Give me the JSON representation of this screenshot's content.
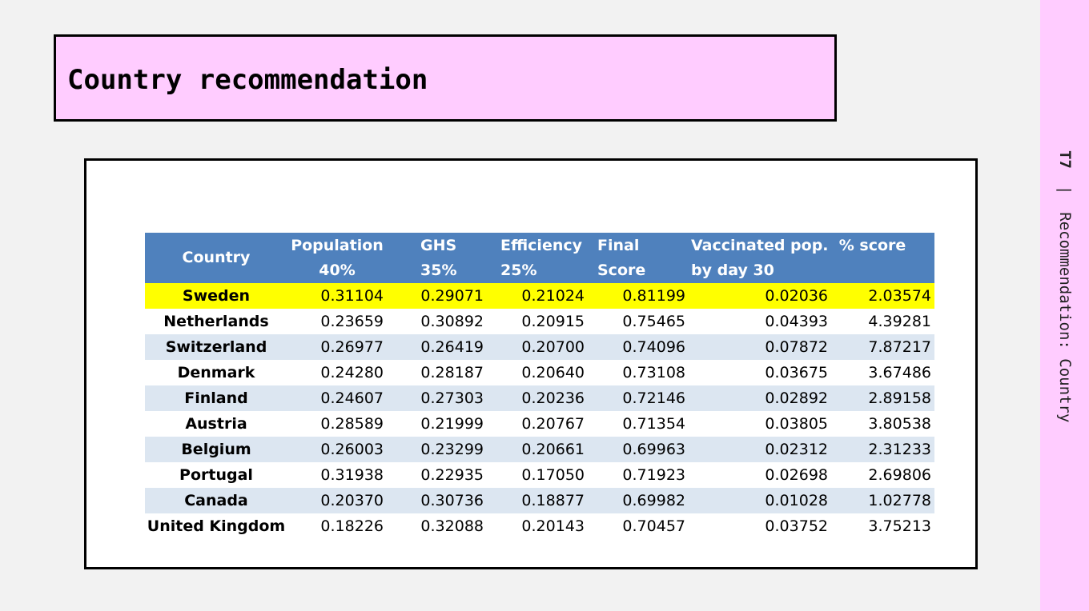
{
  "slide": {
    "title": "Country recommendation",
    "side_code": "T7",
    "side_sep": "|",
    "side_text": "Recommendation: Country"
  },
  "table": {
    "headers": {
      "country": "Country",
      "population": [
        "Population",
        "40%"
      ],
      "ghs": [
        "GHS",
        "35%"
      ],
      "efficiency": [
        "Efficiency",
        "25%"
      ],
      "final": [
        "Final",
        "Score"
      ],
      "vaccinated": [
        "Vaccinated pop.  % score",
        "by day 30"
      ]
    },
    "rows": [
      [
        "Sweden",
        "0.31104",
        "0.29071",
        "0.21024",
        "0.81199",
        "0.02036",
        "2.03574"
      ],
      [
        "Netherlands",
        "0.23659",
        "0.30892",
        "0.20915",
        "0.75465",
        "0.04393",
        "4.39281"
      ],
      [
        "Switzerland",
        "0.26977",
        "0.26419",
        "0.20700",
        "0.74096",
        "0.07872",
        "7.87217"
      ],
      [
        "Denmark",
        "0.24280",
        "0.28187",
        "0.20640",
        "0.73108",
        "0.03675",
        "3.67486"
      ],
      [
        "Finland",
        "0.24607",
        "0.27303",
        "0.20236",
        "0.72146",
        "0.02892",
        "2.89158"
      ],
      [
        "Austria",
        "0.28589",
        "0.21999",
        "0.20767",
        "0.71354",
        "0.03805",
        "3.80538"
      ],
      [
        "Belgium",
        "0.26003",
        "0.23299",
        "0.20661",
        "0.69963",
        "0.02312",
        "2.31233"
      ],
      [
        "Portugal",
        "0.31938",
        "0.22935",
        "0.17050",
        "0.71923",
        "0.02698",
        "2.69806"
      ],
      [
        "Canada",
        "0.20370",
        "0.30736",
        "0.18877",
        "0.69982",
        "0.01028",
        "1.02778"
      ],
      [
        "United Kingdom",
        "0.18226",
        "0.32088",
        "0.20143",
        "0.70457",
        "0.03752",
        "3.75213"
      ]
    ],
    "highlight_color": "#ffff00",
    "header_color": "#4f81bd",
    "stripe_color": "#dce6f1"
  }
}
